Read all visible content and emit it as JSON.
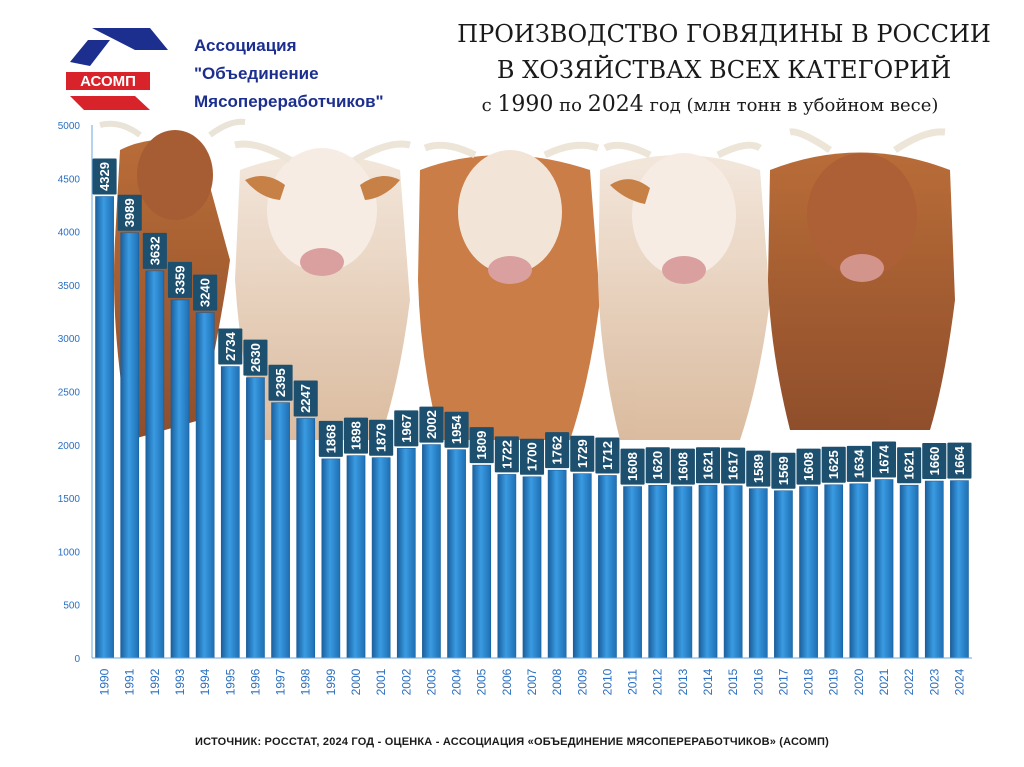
{
  "org": {
    "logo_text": "АСОМП",
    "line1": "Ассоциация",
    "line2": "\"Объединение",
    "line3": "Мясопереработчиков\""
  },
  "title": {
    "line1": "ПРОИЗВОДСТВО ГОВЯДИНЫ В РОССИИ",
    "line2": "В ХОЗЯЙСТВАХ ВСЕХ КАТЕГОРИЙ",
    "line3_prefix": "с",
    "year_from": "1990",
    "line3_mid": "по",
    "year_to": "2024",
    "line3_suffix": "год (млн тонн в убойном весе)"
  },
  "source": "ИСТОЧНИК: РОССТАТ, 2024 ГОД - ОЦЕНКА - АССОЦИАЦИЯ «ОБЪЕДИНЕНИЕ МЯСОПЕРЕРАБОТЧИКОВ» (АСОМП)",
  "colors": {
    "bar": "#2b86cf",
    "bar_dark": "#1a5f9c",
    "label_box": "#1d4f6e",
    "axis_text": "#2a6fc0",
    "title_text": "#1a1a1a",
    "org_text": "#1c2f8f",
    "logo_red": "#d8232a",
    "logo_blue": "#1c2f8f"
  },
  "chart_data": {
    "type": "bar",
    "categories": [
      "1990",
      "1991",
      "1992",
      "1993",
      "1994",
      "1995",
      "1996",
      "1997",
      "1998",
      "1999",
      "2000",
      "2001",
      "2002",
      "2003",
      "2004",
      "2005",
      "2006",
      "2007",
      "2008",
      "2009",
      "2010",
      "2011",
      "2012",
      "2013",
      "2014",
      "2015",
      "2016",
      "2017",
      "2018",
      "2019",
      "2020",
      "2021",
      "2022",
      "2023",
      "2024"
    ],
    "values": [
      4329,
      3989,
      3632,
      3359,
      3240,
      2734,
      2630,
      2395,
      2247,
      1868,
      1898,
      1879,
      1967,
      2002,
      1954,
      1809,
      1722,
      1700,
      1762,
      1729,
      1712,
      1608,
      1620,
      1608,
      1621,
      1617,
      1589,
      1569,
      1608,
      1625,
      1634,
      1674,
      1621,
      1660,
      1664
    ],
    "ylim": [
      0,
      5000
    ],
    "yticks": [
      0,
      500,
      1000,
      1500,
      2000,
      2500,
      3000,
      3500,
      4000,
      4500,
      5000
    ],
    "grid": false,
    "legend": "none"
  }
}
